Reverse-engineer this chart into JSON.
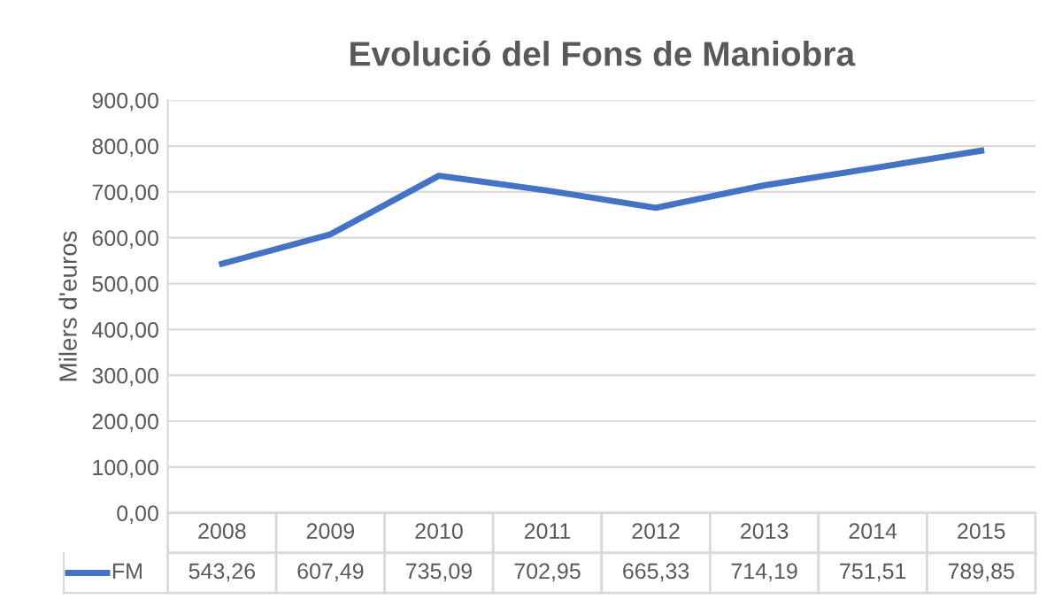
{
  "chart_data": {
    "type": "line",
    "title": "Evolució del Fons de Maniobra",
    "ylabel": "Milers d'euros",
    "categories": [
      "2008",
      "2009",
      "2010",
      "2011",
      "2012",
      "2013",
      "2014",
      "2015"
    ],
    "series": [
      {
        "name": "FM",
        "color": "#4472c4",
        "values": [
          543.26,
          607.49,
          735.09,
          702.95,
          665.33,
          714.19,
          751.51,
          789.85
        ],
        "value_labels": [
          "543,26",
          "607,49",
          "735,09",
          "702,95",
          "665,33",
          "714,19",
          "751,51",
          "789,85"
        ]
      }
    ],
    "ylim": [
      0,
      900
    ],
    "yticks": [
      {
        "value": 0,
        "label": "0,00"
      },
      {
        "value": 100,
        "label": "100,00"
      },
      {
        "value": 200,
        "label": "200,00"
      },
      {
        "value": 300,
        "label": "300,00"
      },
      {
        "value": 400,
        "label": "400,00"
      },
      {
        "value": 500,
        "label": "500,00"
      },
      {
        "value": 600,
        "label": "600,00"
      },
      {
        "value": 700,
        "label": "700,00"
      },
      {
        "value": 800,
        "label": "800,00"
      },
      {
        "value": 900,
        "label": "900,00"
      }
    ],
    "grid": "y",
    "marker": "none",
    "line_style": "solid"
  }
}
